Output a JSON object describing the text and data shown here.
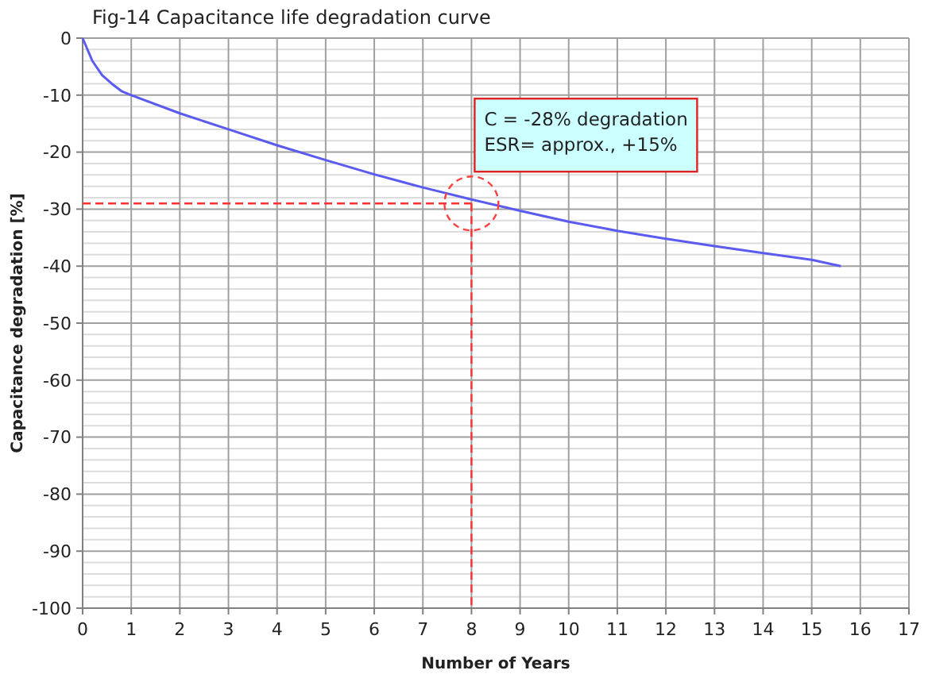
{
  "chart_data": {
    "type": "line",
    "title": "Fig-14 Capacitance  life  degradation curve",
    "xlabel": "Number of Years",
    "ylabel": "Capacitance degradation [%]",
    "series": [
      {
        "color": "#5b5bf0",
        "x": [
          0,
          0.2,
          0.4,
          0.6,
          0.8,
          1,
          2,
          3,
          4,
          5,
          6,
          7,
          8,
          9,
          10,
          11,
          12,
          13,
          14,
          15,
          15.6
        ],
        "values": [
          0,
          -4,
          -6.5,
          -8,
          -9.3,
          -10,
          -13.2,
          -16,
          -18.8,
          -21.4,
          -23.9,
          -26.2,
          -28.3,
          -30.3,
          -32.2,
          -33.8,
          -35.2,
          -36.5,
          -37.7,
          -38.9,
          -40
        ]
      }
    ],
    "xlim": [
      0,
      17
    ],
    "xticks": [
      0,
      1,
      2,
      3,
      4,
      5,
      6,
      7,
      8,
      9,
      10,
      11,
      12,
      13,
      14,
      15,
      16,
      17
    ],
    "ylim": [
      -100,
      0
    ],
    "yticks": [
      -100,
      -90,
      -80,
      -70,
      -60,
      -50,
      -40,
      -30,
      -20,
      -10,
      0
    ],
    "grid": true,
    "marker": "none",
    "line_style": "solid",
    "ref_lines": [
      {
        "axis": "y",
        "value": -29,
        "color": "#ff3030",
        "line_style": "dashed"
      },
      {
        "axis": "x",
        "value": 8,
        "color": "#ff3030",
        "line_style": "dashed"
      }
    ],
    "annotations": [
      {
        "text": "C = -28% degradation\nESR= approx., +15%",
        "x": 8,
        "y": -29
      }
    ]
  }
}
